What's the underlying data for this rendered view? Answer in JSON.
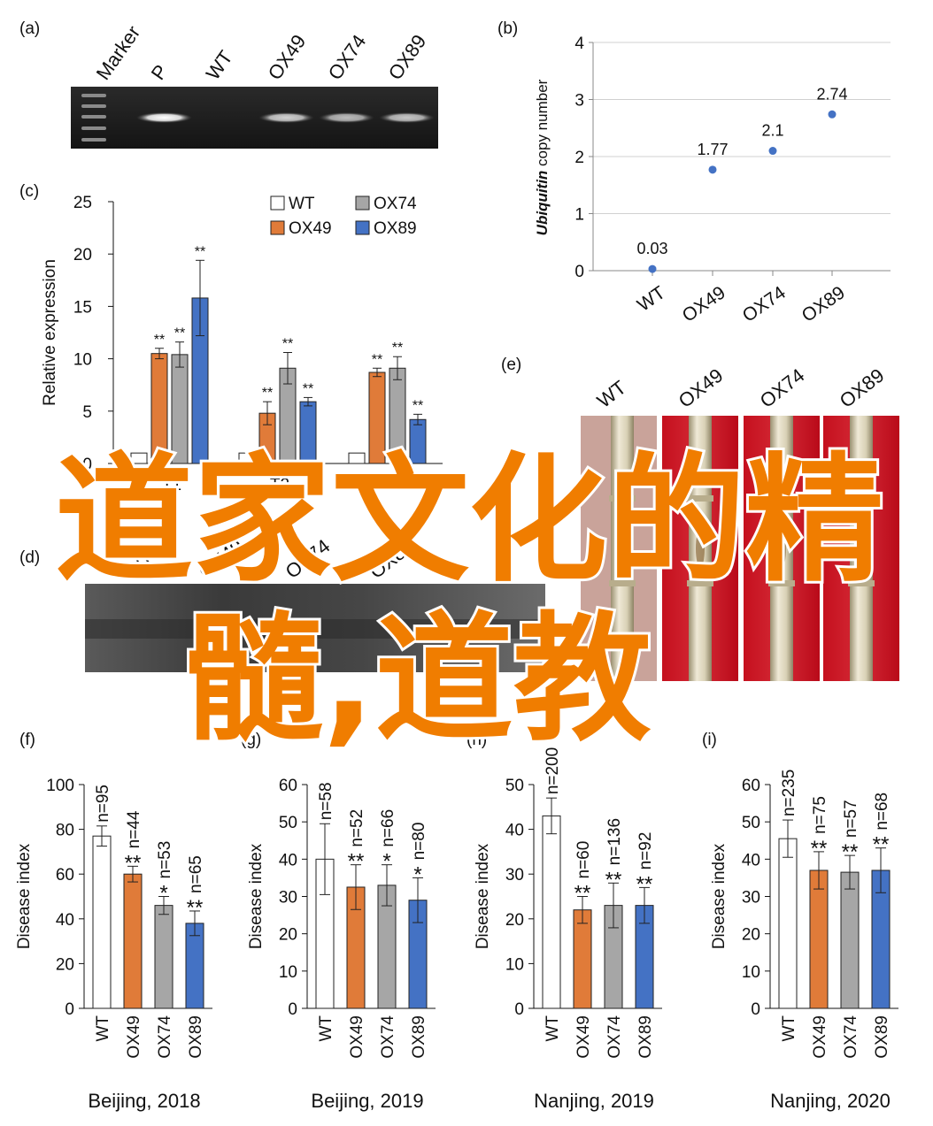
{
  "panels": {
    "a": {
      "label": "(a)",
      "lane_labels": [
        "Marker",
        "P",
        "WT",
        "OX49",
        "OX74",
        "OX89"
      ]
    },
    "b": {
      "label": "(b)",
      "ylabel_italic": "Ubiquitin",
      "ylabel_rest": " copy number"
    },
    "c": {
      "label": "(c)"
    },
    "d": {
      "label": "(d)",
      "lane_labels": [
        "WT",
        "OX49",
        "OX74",
        "OX89"
      ]
    },
    "e": {
      "label": "(e)",
      "photo_labels": [
        "WT",
        "OX49",
        "OX74",
        "OX89"
      ]
    },
    "f": {
      "label": "(f)"
    },
    "g": {
      "label": "(g)"
    },
    "h": {
      "label": "(h)"
    },
    "i": {
      "label": "(i)"
    }
  },
  "watermark": {
    "line1": "道家文化的精",
    "line2": "髓,道教"
  },
  "colors": {
    "WT": "#ffffff",
    "OX49": "#e07b39",
    "OX74": "#a6a6a6",
    "OX89": "#4472c4",
    "point": "#4472c4"
  },
  "chart_data": [
    {
      "id": "b",
      "type": "scatter",
      "categories": [
        "WT",
        "OX49",
        "OX74",
        "OX89"
      ],
      "values": [
        0.03,
        1.77,
        2.1,
        2.74
      ],
      "data_labels": [
        "0.03",
        "1.77",
        "2.1",
        "2.74"
      ],
      "ylabel": "Ubiquitin copy number",
      "ylim": [
        0,
        4
      ],
      "yticks": [
        0,
        1,
        2,
        3,
        4
      ],
      "grid": true
    },
    {
      "id": "c",
      "type": "bar",
      "categories": [
        "T1",
        "T2",
        "T3"
      ],
      "ylabel": "Relative expression",
      "ylim": [
        0,
        25
      ],
      "yticks": [
        0,
        5,
        10,
        15,
        20,
        25
      ],
      "legend": [
        "WT",
        "OX74",
        "OX49",
        "OX89"
      ],
      "legend_position": "top-right",
      "series": [
        {
          "name": "WT",
          "values": [
            1,
            1,
            1
          ],
          "errors": [
            0,
            0,
            0
          ],
          "marks": [
            "",
            "",
            ""
          ]
        },
        {
          "name": "OX49",
          "values": [
            10.5,
            4.8,
            8.7
          ],
          "errors": [
            0.5,
            1.1,
            0.4
          ],
          "marks": [
            "**",
            "**",
            "**"
          ]
        },
        {
          "name": "OX74",
          "values": [
            10.4,
            9.1,
            9.1
          ],
          "errors": [
            1.2,
            1.5,
            1.1
          ],
          "marks": [
            "**",
            "**",
            "**"
          ]
        },
        {
          "name": "OX89",
          "values": [
            15.8,
            5.9,
            4.2
          ],
          "errors": [
            3.6,
            0.4,
            0.5
          ],
          "marks": [
            "**",
            "**",
            "**"
          ]
        }
      ]
    },
    {
      "id": "f",
      "type": "bar",
      "title": "Beijing, 2018",
      "ylabel": "Disease index",
      "ylim": [
        0,
        100
      ],
      "yticks": [
        0,
        20,
        40,
        60,
        80,
        100
      ],
      "categories": [
        "WT",
        "OX49",
        "OX74",
        "OX89"
      ],
      "values": [
        77,
        60,
        46,
        38
      ],
      "errors": [
        4.5,
        3.5,
        4,
        5.5
      ],
      "n_labels": [
        "n=95",
        "n=44",
        "n=53",
        "n=65"
      ],
      "marks": [
        "",
        "**",
        "*",
        "**"
      ]
    },
    {
      "id": "g",
      "type": "bar",
      "title": "Beijing, 2019",
      "ylabel": "Disease index",
      "ylim": [
        0,
        60
      ],
      "yticks": [
        0,
        10,
        20,
        30,
        40,
        50,
        60
      ],
      "categories": [
        "WT",
        "OX49",
        "OX74",
        "OX89"
      ],
      "values": [
        40,
        32.5,
        33,
        29
      ],
      "errors": [
        9.5,
        6,
        5.5,
        6
      ],
      "n_labels": [
        "n=58",
        "n=52",
        "n=66",
        "n=80"
      ],
      "marks": [
        "",
        "**",
        "*",
        "*"
      ]
    },
    {
      "id": "h",
      "type": "bar",
      "title": "Nanjing, 2019",
      "ylabel": "Disease index",
      "ylim": [
        0,
        50
      ],
      "yticks": [
        0,
        10,
        20,
        30,
        40,
        50
      ],
      "categories": [
        "WT",
        "OX49",
        "OX74",
        "OX89"
      ],
      "values": [
        43,
        22,
        23,
        23
      ],
      "errors": [
        4,
        3,
        5,
        4
      ],
      "n_labels": [
        "n=200",
        "n=60",
        "n=136",
        "n=92"
      ],
      "marks": [
        "",
        "**",
        "**",
        "**"
      ]
    },
    {
      "id": "i",
      "type": "bar",
      "title": "Nanjing, 2020",
      "ylabel": "Disease index",
      "ylim": [
        0,
        60
      ],
      "yticks": [
        0,
        10,
        20,
        30,
        40,
        50,
        60
      ],
      "categories": [
        "WT",
        "OX49",
        "OX74",
        "OX89"
      ],
      "values": [
        45.5,
        37,
        36.5,
        37
      ],
      "errors": [
        5,
        5,
        4.5,
        6
      ],
      "n_labels": [
        "n=235",
        "n=75",
        "n=57",
        "n=68"
      ],
      "marks": [
        "",
        "**",
        "**",
        "**"
      ]
    }
  ]
}
